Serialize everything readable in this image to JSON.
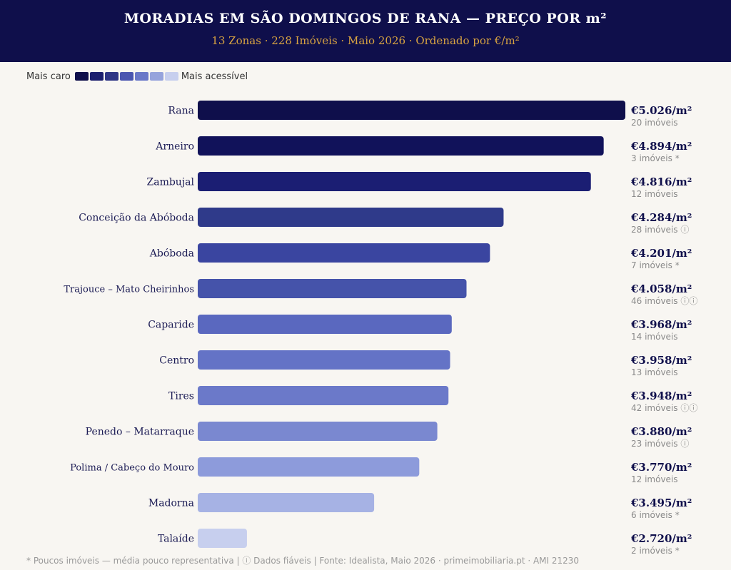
{
  "header": {
    "title": "MORADIAS EM SÃO DOMINGOS DE RANA — PREÇO POR m²",
    "subtitle": "13 Zonas · 228 Imóveis · Maio 2026 · Ordenado por €/m²"
  },
  "legend": {
    "left_label": "Mais caro",
    "right_label": "Mais acessível",
    "swatches": [
      "#0f0f4b",
      "#1b1e6e",
      "#2e3585",
      "#4a55b0",
      "#6a78c8",
      "#96a3dc",
      "#c7cfee"
    ]
  },
  "chart_data": {
    "type": "bar",
    "orientation": "horizontal",
    "xlim": [
      0,
      5026
    ],
    "categories": [
      "Rana",
      "Arneiro",
      "Zambujal",
      "Conceição da Abóboda",
      "Abóboda",
      "Trajouce – Mato Cheirinhos",
      "Caparide",
      "Centro",
      "Tires",
      "Penedo – Matarraque",
      "Polima / Cabeço do Mouro",
      "Madorna",
      "Talaíde"
    ],
    "values": [
      5026,
      4894,
      4816,
      4284,
      4201,
      4058,
      3968,
      3958,
      3948,
      3880,
      3770,
      3495,
      2720
    ],
    "value_labels": [
      "€5.026/m²",
      "€4.894/m²",
      "€4.816/m²",
      "€4.284/m²",
      "€4.201/m²",
      "€4.058/m²",
      "€3.968/m²",
      "€3.958/m²",
      "€3.948/m²",
      "€3.880/m²",
      "€3.770/m²",
      "€3.495/m²",
      "€2.720/m²"
    ],
    "counts": [
      "20 imóveis",
      "3 imóveis *",
      "12 imóveis",
      "28 imóveis ⓘ",
      "7 imóveis *",
      "46 imóveis ⓘⓘ",
      "14 imóveis",
      "13 imóveis",
      "42 imóveis ⓘⓘ",
      "23 imóveis ⓘ",
      "12 imóveis",
      "6 imóveis *",
      "2 imóveis *"
    ],
    "colors": [
      "#0f0f4b",
      "#11125a",
      "#1b1e73",
      "#2f3a8a",
      "#3a45a0",
      "#4553aa",
      "#5a68bf",
      "#6473c6",
      "#6b79c9",
      "#7a88d0",
      "#8d9bdb",
      "#a6b2e4",
      "#c7cfee"
    ]
  },
  "footer": {
    "text": "* Poucos imóveis — média pouco representativa | ⓘ Dados fiáveis | Fonte: Idealista, Maio 2026 · primeimobiliaria.pt · AMI 21230"
  }
}
